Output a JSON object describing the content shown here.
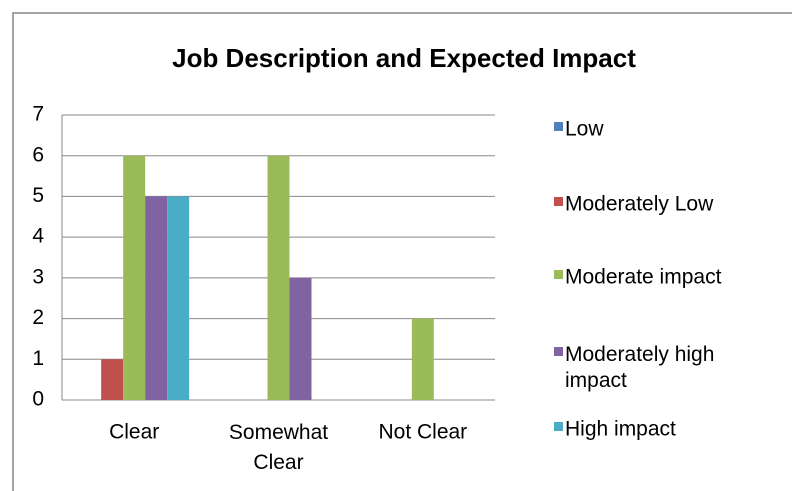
{
  "chart_data": {
    "type": "bar",
    "title": "Job Description and Expected Impact",
    "categories": [
      "Clear",
      "Somewhat Clear",
      "Not Clear"
    ],
    "series": [
      {
        "name": "Low",
        "color": "#4f81bd",
        "values": [
          0,
          0,
          0
        ]
      },
      {
        "name": "Moderately Low",
        "color": "#c0504d",
        "values": [
          1,
          0,
          0
        ]
      },
      {
        "name": "Moderate impact",
        "color": "#9bbb59",
        "values": [
          6,
          6,
          2
        ]
      },
      {
        "name": "Moderately high impact",
        "color": "#8064a2",
        "values": [
          5,
          3,
          0
        ]
      },
      {
        "name": "High impact",
        "color": "#4bacc6",
        "values": [
          5,
          0,
          0
        ]
      }
    ],
    "ylim": [
      0,
      7
    ],
    "yticks": [
      0,
      1,
      2,
      3,
      4,
      5,
      6,
      7
    ],
    "grid": true,
    "legend": "right"
  }
}
